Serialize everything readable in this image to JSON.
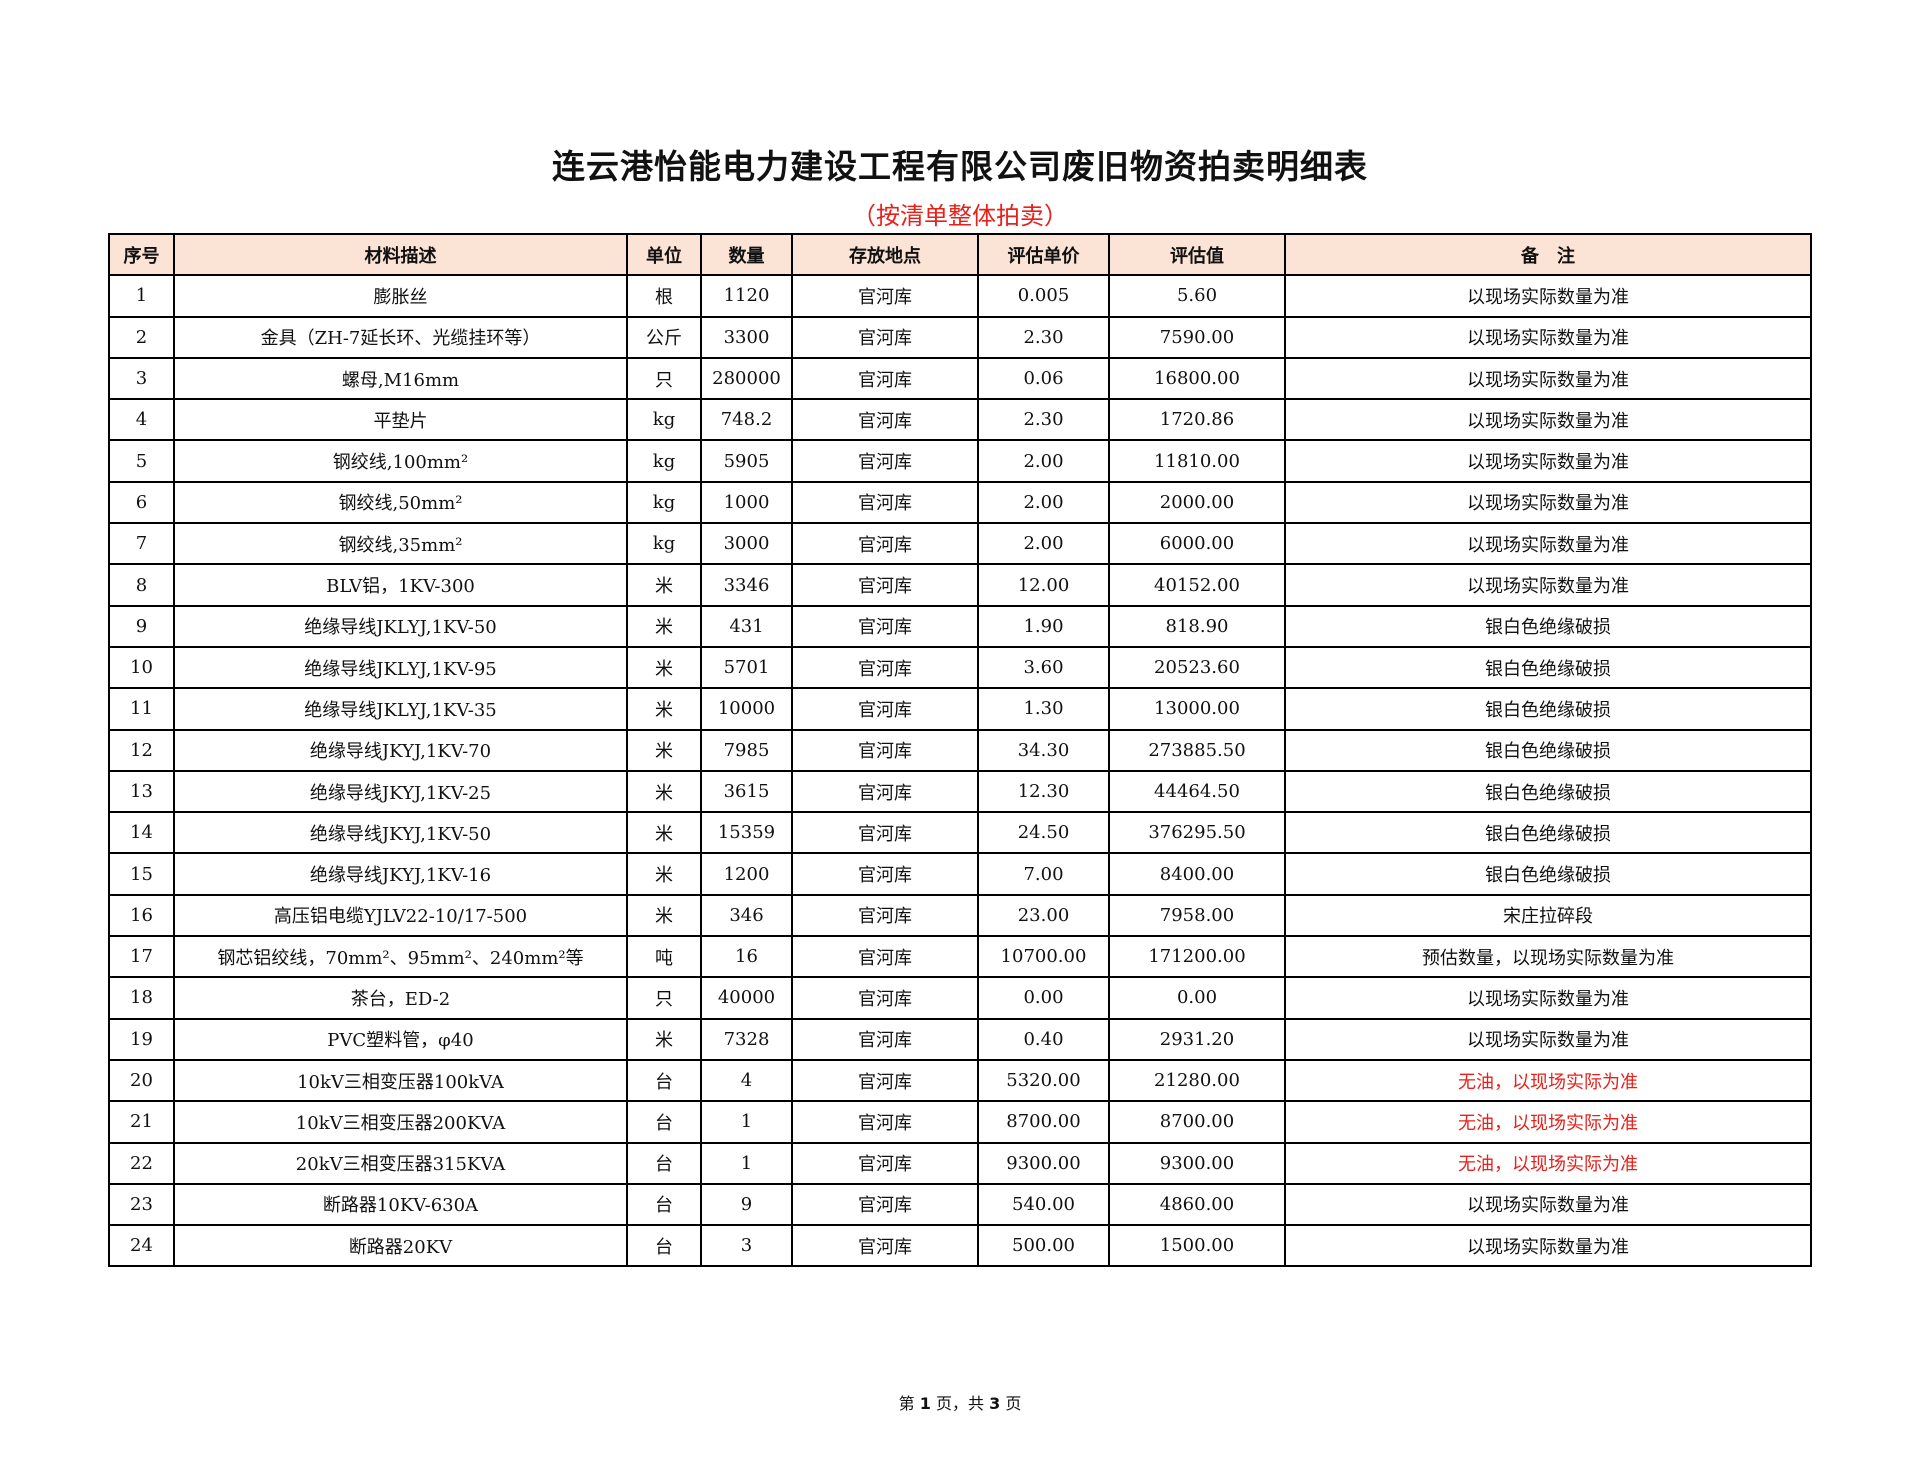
{
  "title": "连云港怡能电力建设工程有限公司废旧物资拍卖明细表",
  "subtitle": "（按清单整体拍卖）",
  "columns": [
    "序号",
    "材料描述",
    "单位",
    "数量",
    "存放地点",
    "评估单价",
    "评估值",
    "备　注"
  ],
  "rows": [
    [
      "1",
      "膨胀丝",
      "根",
      "1120",
      "官河库",
      "0.005",
      "5.60",
      "以现场实际数量为准"
    ],
    [
      "2",
      "金具（ZH-7延长环、光缆挂环等）",
      "公斤",
      "3300",
      "官河库",
      "2.30",
      "7590.00",
      "以现场实际数量为准"
    ],
    [
      "3",
      "螺母,M16mm",
      "只",
      "280000",
      "官河库",
      "0.06",
      "16800.00",
      "以现场实际数量为准"
    ],
    [
      "4",
      "平垫片",
      "kg",
      "748.2",
      "官河库",
      "2.30",
      "1720.86",
      "以现场实际数量为准"
    ],
    [
      "5",
      "钢绞线,100mm²",
      "kg",
      "5905",
      "官河库",
      "2.00",
      "11810.00",
      "以现场实际数量为准"
    ],
    [
      "6",
      "钢绞线,50mm²",
      "kg",
      "1000",
      "官河库",
      "2.00",
      "2000.00",
      "以现场实际数量为准"
    ],
    [
      "7",
      "钢绞线,35mm²",
      "kg",
      "3000",
      "官河库",
      "2.00",
      "6000.00",
      "以现场实际数量为准"
    ],
    [
      "8",
      "BLV铝，1KV-300",
      "米",
      "3346",
      "官河库",
      "12.00",
      "40152.00",
      "以现场实际数量为准"
    ],
    [
      "9",
      "绝缘导线JKLYJ,1KV-50",
      "米",
      "431",
      "官河库",
      "1.90",
      "818.90",
      "银白色绝缘破损"
    ],
    [
      "10",
      "绝缘导线JKLYJ,1KV-95",
      "米",
      "5701",
      "官河库",
      "3.60",
      "20523.60",
      "银白色绝缘破损"
    ],
    [
      "11",
      "绝缘导线JKLYJ,1KV-35",
      "米",
      "10000",
      "官河库",
      "1.30",
      "13000.00",
      "银白色绝缘破损"
    ],
    [
      "12",
      "绝缘导线JKYJ,1KV-70",
      "米",
      "7985",
      "官河库",
      "34.30",
      "273885.50",
      "银白色绝缘破损"
    ],
    [
      "13",
      "绝缘导线JKYJ,1KV-25",
      "米",
      "3615",
      "官河库",
      "12.30",
      "44464.50",
      "银白色绝缘破损"
    ],
    [
      "14",
      "绝缘导线JKYJ,1KV-50",
      "米",
      "15359",
      "官河库",
      "24.50",
      "376295.50",
      "银白色绝缘破损"
    ],
    [
      "15",
      "绝缘导线JKYJ,1KV-16",
      "米",
      "1200",
      "官河库",
      "7.00",
      "8400.00",
      "银白色绝缘破损"
    ],
    [
      "16",
      "高压铝电缆YJLV22-10/17-500",
      "米",
      "346",
      "官河库",
      "23.00",
      "7958.00",
      "宋庄拉碎段"
    ],
    [
      "17",
      "钢芯铝绞线，70mm²、95mm²、240mm²等",
      "吨",
      "16",
      "官河库",
      "10700.00",
      "171200.00",
      "预估数量，以现场实际数量为准"
    ],
    [
      "18",
      "茶台，ED-2",
      "只",
      "40000",
      "官河库",
      "0.00",
      "0.00",
      "以现场实际数量为准"
    ],
    [
      "19",
      "PVC塑料管，φ40",
      "米",
      "7328",
      "官河库",
      "0.40",
      "2931.20",
      "以现场实际数量为准"
    ],
    [
      "20",
      "10kV三相变压器100kVA",
      "台",
      "4",
      "官河库",
      "5320.00",
      "21280.00",
      "无油，以现场实际为准"
    ],
    [
      "21",
      "10kV三相变压器200KVA",
      "台",
      "1",
      "官河库",
      "8700.00",
      "8700.00",
      "无油，以现场实际为准"
    ],
    [
      "22",
      "20kV三相变压器315KVA",
      "台",
      "1",
      "官河库",
      "9300.00",
      "9300.00",
      "无油，以现场实际为准"
    ],
    [
      "23",
      "断路器10KV-630A",
      "台",
      "9",
      "官河库",
      "540.00",
      "4860.00",
      "以现场实际数量为准"
    ],
    [
      "24",
      "断路器20KV",
      "台",
      "3",
      "官河库",
      "500.00",
      "1500.00",
      "以现场实际数量为准"
    ]
  ],
  "red_remark_rows": [
    "20",
    "21",
    "22"
  ],
  "colors": {
    "header_bg": "#fbe3d6",
    "accent_red": "#e8201a"
  },
  "footer": {
    "prefix": "第 ",
    "page": "1",
    "middle": " 页，共 ",
    "total": "3",
    "suffix": " 页"
  }
}
